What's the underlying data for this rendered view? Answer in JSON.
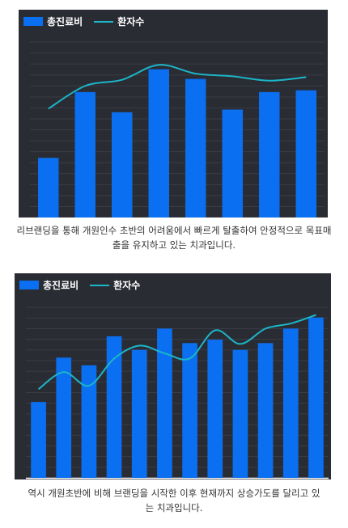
{
  "colors": {
    "bar": "#0a6ff0",
    "line": "#1bb6c9",
    "panel": "#2a2c34",
    "grid": "#3a3d46"
  },
  "chart_data": [
    {
      "type": "bar",
      "legend": {
        "bar_label": "총진료비",
        "line_label": "환자수"
      },
      "categories": [
        "",
        "",
        "",
        "",
        "",
        "",
        "",
        ""
      ],
      "series": [
        {
          "name": "총진료비",
          "type": "bar",
          "values": [
            68,
            143,
            120,
            169,
            158,
            123,
            143,
            145
          ]
        },
        {
          "name": "환자수",
          "type": "line",
          "values": [
            124,
            150,
            157,
            174,
            164,
            161,
            156,
            160
          ]
        }
      ],
      "ylim": [
        0,
        200
      ],
      "grid": true,
      "legend_position": "top-left",
      "caption": "리브랜딩을 통해 개원인수 초반의 어려움에서 빠르게 탈출하여 안정적으로 목표매출을 유지하고 있는 치과입니다."
    },
    {
      "type": "bar",
      "legend": {
        "bar_label": "총진료비",
        "line_label": "환자수"
      },
      "categories": [
        "",
        "",
        "",
        "",
        "",
        "",
        "",
        "",
        "",
        "",
        "",
        ""
      ],
      "series": [
        {
          "name": "총진료비",
          "type": "bar",
          "values": [
            89,
            141,
            132,
            166,
            150,
            175,
            158,
            162,
            150,
            158,
            175,
            188
          ]
        },
        {
          "name": "환자수",
          "type": "line",
          "values": [
            104,
            124,
            108,
            140,
            155,
            146,
            140,
            173,
            157,
            175,
            181,
            191
          ]
        }
      ],
      "ylim": [
        0,
        200
      ],
      "grid": true,
      "legend_position": "top-left",
      "caption": "역시 개원초반에 비해 브랜딩을 시작한 이후 현재까지 상승가도를 달리고 있는 치과입니다."
    }
  ]
}
